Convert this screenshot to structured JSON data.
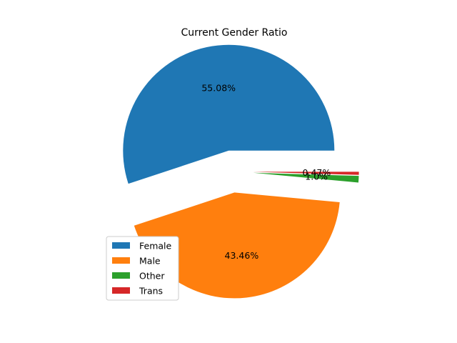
{
  "chart_data": {
    "type": "pie",
    "title": "Current Gender Ratio",
    "legend_position": "lower-left",
    "slices": [
      {
        "name": "Female",
        "value": 55.08,
        "label": "55.08%",
        "color": "#1f77b4",
        "exploded": true
      },
      {
        "name": "Male",
        "value": 43.46,
        "label": "43.46%",
        "color": "#ff7f0e",
        "exploded": true
      },
      {
        "name": "Other",
        "value": 1.0,
        "label": "1.0%",
        "color": "#2ca02c",
        "exploded": true
      },
      {
        "name": "Trans",
        "value": 0.47,
        "label": "0.47%",
        "color": "#d62728",
        "exploded": true
      }
    ]
  }
}
